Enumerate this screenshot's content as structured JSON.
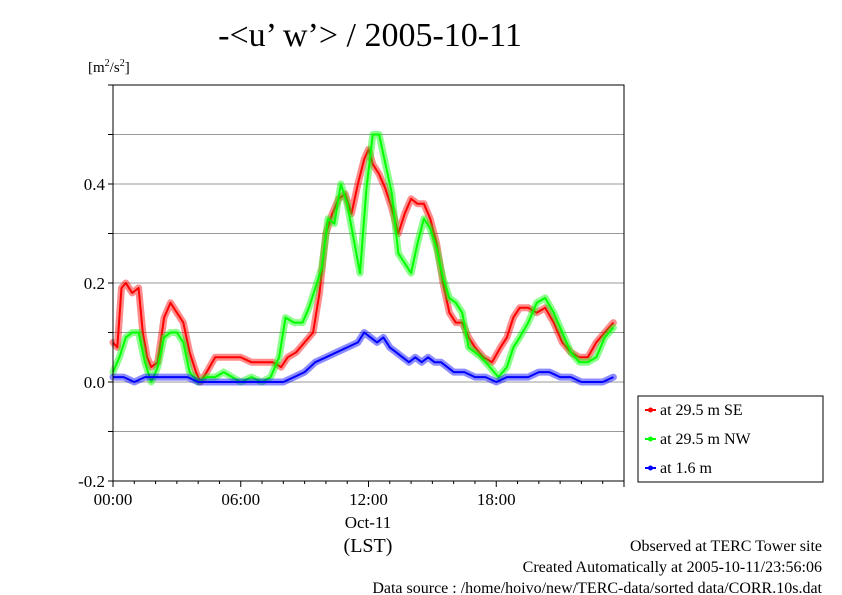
{
  "chart_data": {
    "type": "line",
    "title": "-<u’ w’> / 2005-10-11",
    "ylabel": "[m2/s2]",
    "ylabel_parts": {
      "open": "[m",
      "sup1": "2",
      "mid": "/s",
      "sup2": "2",
      "close": "]"
    },
    "xlabel": "(LST)",
    "date_label": "Oct-11",
    "xlim": [
      0,
      24
    ],
    "ylim": [
      -0.2,
      0.6
    ],
    "x_ticks": [
      {
        "value": 0,
        "label": "00:00"
      },
      {
        "value": 6,
        "label": "06:00"
      },
      {
        "value": 12,
        "label": "12:00"
      },
      {
        "value": 18,
        "label": "18:00"
      }
    ],
    "y_ticks": [
      {
        "value": -0.2,
        "label": "-0.2"
      },
      {
        "value": 0.0,
        "label": "0.0"
      },
      {
        "value": 0.2,
        "label": "0.2"
      },
      {
        "value": 0.4,
        "label": "0.4"
      }
    ],
    "grid": true,
    "legend_position": "right-bottom outside",
    "series": [
      {
        "name": "at 29.5 m SE",
        "color": "#ff0000",
        "points": [
          [
            0.0,
            0.08
          ],
          [
            0.2,
            0.07
          ],
          [
            0.4,
            0.19
          ],
          [
            0.6,
            0.2
          ],
          [
            0.9,
            0.18
          ],
          [
            1.2,
            0.19
          ],
          [
            1.4,
            0.1
          ],
          [
            1.6,
            0.05
          ],
          [
            1.8,
            0.03
          ],
          [
            2.1,
            0.04
          ],
          [
            2.4,
            0.13
          ],
          [
            2.7,
            0.16
          ],
          [
            3.0,
            0.14
          ],
          [
            3.3,
            0.12
          ],
          [
            3.6,
            0.06
          ],
          [
            3.9,
            0.02
          ],
          [
            4.1,
            0.0
          ],
          [
            4.4,
            0.02
          ],
          [
            4.8,
            0.05
          ],
          [
            5.2,
            0.05
          ],
          [
            5.6,
            0.05
          ],
          [
            6.0,
            0.05
          ],
          [
            6.5,
            0.04
          ],
          [
            7.0,
            0.04
          ],
          [
            7.5,
            0.04
          ],
          [
            7.9,
            0.03
          ],
          [
            8.2,
            0.05
          ],
          [
            8.6,
            0.06
          ],
          [
            9.0,
            0.08
          ],
          [
            9.4,
            0.1
          ],
          [
            9.7,
            0.18
          ],
          [
            10.0,
            0.3
          ],
          [
            10.3,
            0.34
          ],
          [
            10.6,
            0.37
          ],
          [
            10.9,
            0.38
          ],
          [
            11.2,
            0.34
          ],
          [
            11.5,
            0.4
          ],
          [
            11.8,
            0.45
          ],
          [
            12.0,
            0.47
          ],
          [
            12.2,
            0.44
          ],
          [
            12.5,
            0.42
          ],
          [
            12.8,
            0.39
          ],
          [
            13.1,
            0.35
          ],
          [
            13.4,
            0.3
          ],
          [
            13.7,
            0.34
          ],
          [
            14.0,
            0.37
          ],
          [
            14.3,
            0.36
          ],
          [
            14.6,
            0.36
          ],
          [
            14.9,
            0.33
          ],
          [
            15.2,
            0.28
          ],
          [
            15.5,
            0.2
          ],
          [
            15.8,
            0.14
          ],
          [
            16.1,
            0.12
          ],
          [
            16.4,
            0.12
          ],
          [
            16.7,
            0.09
          ],
          [
            17.0,
            0.07
          ],
          [
            17.4,
            0.05
          ],
          [
            17.8,
            0.04
          ],
          [
            18.2,
            0.07
          ],
          [
            18.5,
            0.09
          ],
          [
            18.8,
            0.13
          ],
          [
            19.1,
            0.15
          ],
          [
            19.5,
            0.15
          ],
          [
            19.9,
            0.14
          ],
          [
            20.3,
            0.15
          ],
          [
            20.7,
            0.12
          ],
          [
            21.1,
            0.08
          ],
          [
            21.5,
            0.06
          ],
          [
            21.9,
            0.05
          ],
          [
            22.3,
            0.05
          ],
          [
            22.7,
            0.08
          ],
          [
            23.1,
            0.1
          ],
          [
            23.5,
            0.12
          ]
        ]
      },
      {
        "name": "at 29.5 m NW",
        "color": "#00ff00",
        "points": [
          [
            0.0,
            0.02
          ],
          [
            0.3,
            0.05
          ],
          [
            0.6,
            0.09
          ],
          [
            0.9,
            0.1
          ],
          [
            1.2,
            0.1
          ],
          [
            1.5,
            0.04
          ],
          [
            1.8,
            0.0
          ],
          [
            2.1,
            0.03
          ],
          [
            2.4,
            0.09
          ],
          [
            2.7,
            0.1
          ],
          [
            3.0,
            0.1
          ],
          [
            3.3,
            0.08
          ],
          [
            3.6,
            0.02
          ],
          [
            4.0,
            0.0
          ],
          [
            4.4,
            0.01
          ],
          [
            4.8,
            0.01
          ],
          [
            5.2,
            0.02
          ],
          [
            5.6,
            0.01
          ],
          [
            6.0,
            0.0
          ],
          [
            6.5,
            0.01
          ],
          [
            7.0,
            0.0
          ],
          [
            7.4,
            0.01
          ],
          [
            7.8,
            0.05
          ],
          [
            8.1,
            0.13
          ],
          [
            8.5,
            0.12
          ],
          [
            8.9,
            0.12
          ],
          [
            9.2,
            0.15
          ],
          [
            9.5,
            0.19
          ],
          [
            9.8,
            0.23
          ],
          [
            10.1,
            0.33
          ],
          [
            10.4,
            0.32
          ],
          [
            10.7,
            0.4
          ],
          [
            11.0,
            0.36
          ],
          [
            11.3,
            0.29
          ],
          [
            11.6,
            0.22
          ],
          [
            11.9,
            0.39
          ],
          [
            12.2,
            0.5
          ],
          [
            12.5,
            0.5
          ],
          [
            12.8,
            0.44
          ],
          [
            13.1,
            0.38
          ],
          [
            13.4,
            0.26
          ],
          [
            13.7,
            0.24
          ],
          [
            14.0,
            0.22
          ],
          [
            14.3,
            0.28
          ],
          [
            14.6,
            0.33
          ],
          [
            14.9,
            0.31
          ],
          [
            15.2,
            0.27
          ],
          [
            15.5,
            0.21
          ],
          [
            15.8,
            0.17
          ],
          [
            16.1,
            0.16
          ],
          [
            16.4,
            0.14
          ],
          [
            16.7,
            0.07
          ],
          [
            17.0,
            0.06
          ],
          [
            17.3,
            0.05
          ],
          [
            17.7,
            0.03
          ],
          [
            18.1,
            0.01
          ],
          [
            18.5,
            0.03
          ],
          [
            18.8,
            0.07
          ],
          [
            19.1,
            0.09
          ],
          [
            19.5,
            0.12
          ],
          [
            19.9,
            0.16
          ],
          [
            20.3,
            0.17
          ],
          [
            20.7,
            0.14
          ],
          [
            21.1,
            0.1
          ],
          [
            21.5,
            0.06
          ],
          [
            21.9,
            0.04
          ],
          [
            22.3,
            0.04
          ],
          [
            22.7,
            0.05
          ],
          [
            23.1,
            0.09
          ],
          [
            23.5,
            0.11
          ]
        ]
      },
      {
        "name": "at 1.6 m",
        "color": "#0000ff",
        "points": [
          [
            0.0,
            0.01
          ],
          [
            0.5,
            0.01
          ],
          [
            1.0,
            0.0
          ],
          [
            1.5,
            0.01
          ],
          [
            2.0,
            0.01
          ],
          [
            2.5,
            0.01
          ],
          [
            3.0,
            0.01
          ],
          [
            3.5,
            0.01
          ],
          [
            4.0,
            0.0
          ],
          [
            4.5,
            0.0
          ],
          [
            5.0,
            0.0
          ],
          [
            5.5,
            0.0
          ],
          [
            6.0,
            0.0
          ],
          [
            6.5,
            0.0
          ],
          [
            7.0,
            0.0
          ],
          [
            7.5,
            0.0
          ],
          [
            8.0,
            0.0
          ],
          [
            8.5,
            0.01
          ],
          [
            9.0,
            0.02
          ],
          [
            9.5,
            0.04
          ],
          [
            10.0,
            0.05
          ],
          [
            10.5,
            0.06
          ],
          [
            11.0,
            0.07
          ],
          [
            11.5,
            0.08
          ],
          [
            11.8,
            0.1
          ],
          [
            12.1,
            0.09
          ],
          [
            12.4,
            0.08
          ],
          [
            12.7,
            0.09
          ],
          [
            13.0,
            0.07
          ],
          [
            13.3,
            0.06
          ],
          [
            13.6,
            0.05
          ],
          [
            13.9,
            0.04
          ],
          [
            14.2,
            0.05
          ],
          [
            14.5,
            0.04
          ],
          [
            14.8,
            0.05
          ],
          [
            15.1,
            0.04
          ],
          [
            15.4,
            0.04
          ],
          [
            15.7,
            0.03
          ],
          [
            16.0,
            0.02
          ],
          [
            16.5,
            0.02
          ],
          [
            17.0,
            0.01
          ],
          [
            17.5,
            0.01
          ],
          [
            18.0,
            0.0
          ],
          [
            18.5,
            0.01
          ],
          [
            19.0,
            0.01
          ],
          [
            19.5,
            0.01
          ],
          [
            20.0,
            0.02
          ],
          [
            20.5,
            0.02
          ],
          [
            21.0,
            0.01
          ],
          [
            21.5,
            0.01
          ],
          [
            22.0,
            0.0
          ],
          [
            22.5,
            0.0
          ],
          [
            23.0,
            0.0
          ],
          [
            23.5,
            0.01
          ]
        ]
      }
    ]
  },
  "footer": {
    "line1": "Observed at TERC Tower site",
    "line2": "Created Automatically at 2005-10-11/23:56:06",
    "line3": "Data source : /home/hoivo/new/TERC-data/sorted  data/CORR.10s.dat"
  }
}
